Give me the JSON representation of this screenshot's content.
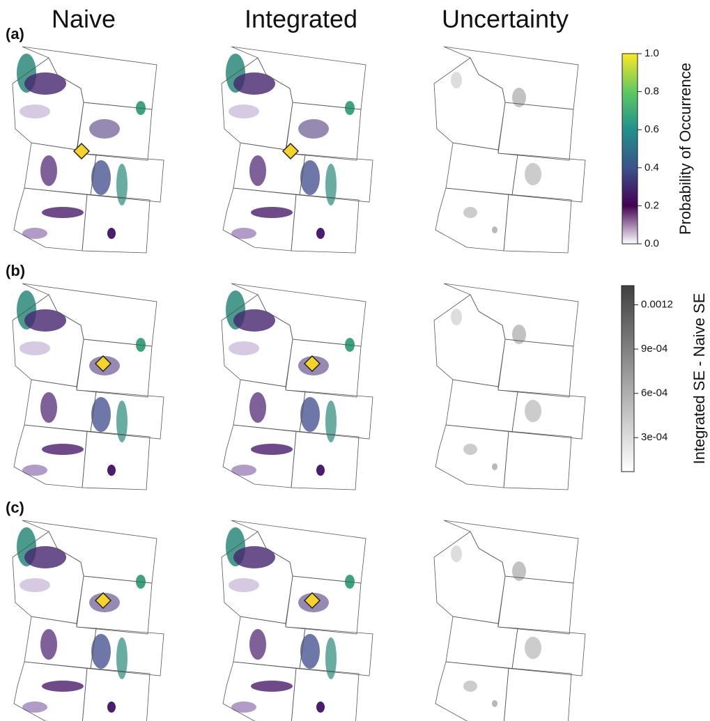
{
  "columns": [
    "Naive",
    "Integrated",
    "Uncertainty"
  ],
  "rows": [
    "(a)",
    "(b)",
    "(c)"
  ],
  "legends": [
    {
      "title": "Probability of Occurrence",
      "lim": [
        0,
        1
      ],
      "ticks": [
        {
          "value": 0,
          "label": "0.0"
        },
        0.2,
        0.4,
        0.6,
        0.8,
        {
          "value": 1,
          "label": "1.0"
        }
      ],
      "colors": [
        "#ffffff",
        "#440154",
        "#3b528b",
        "#21918c",
        "#5ec962",
        "#fde725"
      ]
    },
    {
      "title": "Integrated SE - Naive SE",
      "lim": [
        7e-05,
        0.00133
      ],
      "ticks": [
        {
          "value": 0.0003,
          "label": "3e-04"
        },
        {
          "value": 0.0006,
          "label": "6e-04"
        },
        {
          "value": 0.0009,
          "label": "9e-04"
        },
        0.0012
      ],
      "colors": [
        "#ffffff",
        "#404040"
      ]
    }
  ]
}
